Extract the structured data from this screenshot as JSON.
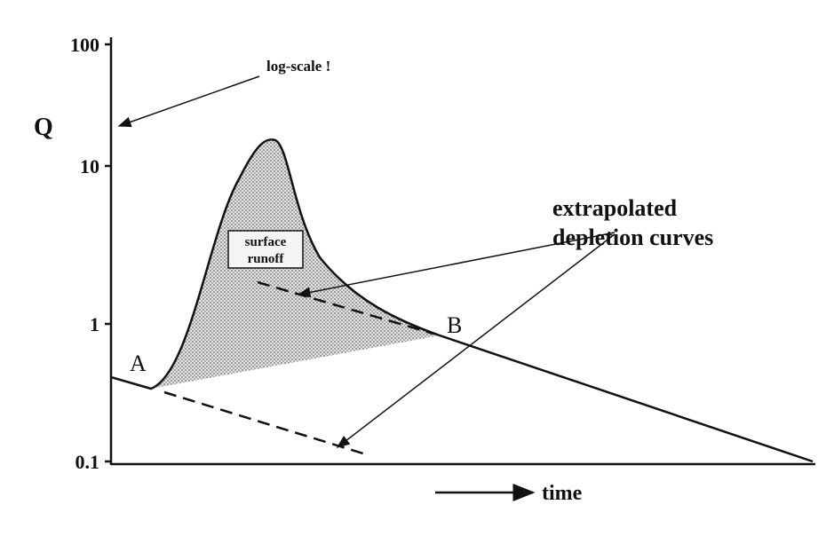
{
  "axis": {
    "y_label": "Q",
    "x_label": "time",
    "y_tick_labels": [
      "100",
      "10",
      "1",
      "0.1"
    ]
  },
  "annotations": {
    "log_scale": "log-scale !",
    "surface_runoff": [
      "surface",
      "runoff"
    ],
    "extrapolated": [
      "extrapolated",
      "depletion curves"
    ]
  },
  "points": {
    "a": "A",
    "b": "B"
  }
}
